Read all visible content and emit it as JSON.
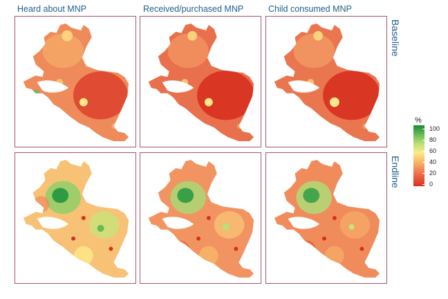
{
  "columns": [
    "Heard about MNP",
    "Received/purchased MNP",
    "Child consumed MNP"
  ],
  "rows": [
    "Baseline",
    "Endline"
  ],
  "legend": {
    "title": "%",
    "ticks": [
      "100",
      "80",
      "60",
      "40",
      "20",
      "0"
    ],
    "colors": [
      "#d7301f",
      "#ef6d4a",
      "#f7b76a",
      "#fde98a",
      "#b8e07a",
      "#66bb55",
      "#1a8a3a"
    ]
  }
}
